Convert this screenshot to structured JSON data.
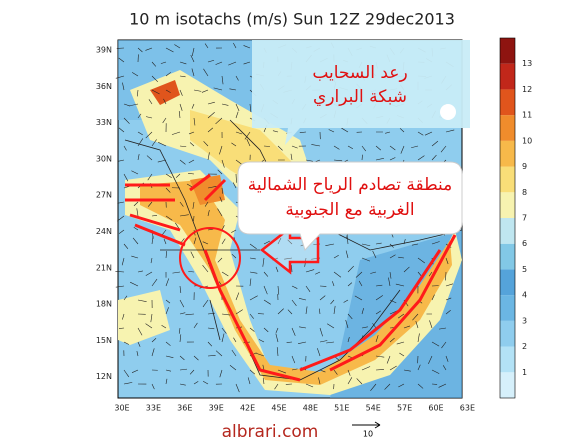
{
  "title": "10 m isotachs (m/s) Sun 12Z 29dec2013",
  "map": {
    "lat_labels": [
      "39N",
      "36N",
      "33N",
      "30N",
      "27N",
      "24N",
      "21N",
      "18N",
      "15N",
      "12N"
    ],
    "lon_labels": [
      "30E",
      "33E",
      "36E",
      "39E",
      "42E",
      "45E",
      "48E",
      "51E",
      "54E",
      "57E",
      "60E",
      "63E"
    ]
  },
  "colorbar": {
    "labels": [
      1,
      2,
      3,
      4,
      5,
      6,
      7,
      8,
      9,
      10,
      11,
      12,
      13
    ],
    "colors": [
      "#d6f0fb",
      "#b3e2f6",
      "#8fcdee",
      "#6bb6e3",
      "#55a3da",
      "#82c8e6",
      "#bfe6f0",
      "#f7f3b0",
      "#f9de78",
      "#f7b94a",
      "#f08c2c",
      "#e0551c",
      "#c1271a",
      "#8e1410"
    ]
  },
  "callouts": {
    "brand": [
      "رعد السحايب",
      "شبكة البراري"
    ],
    "note": [
      "منطقة تصادم الرياح الشمالية",
      "الغربية مع الجنوبية"
    ]
  },
  "footer": {
    "site": "albrari.com",
    "vector_reference": "10"
  }
}
